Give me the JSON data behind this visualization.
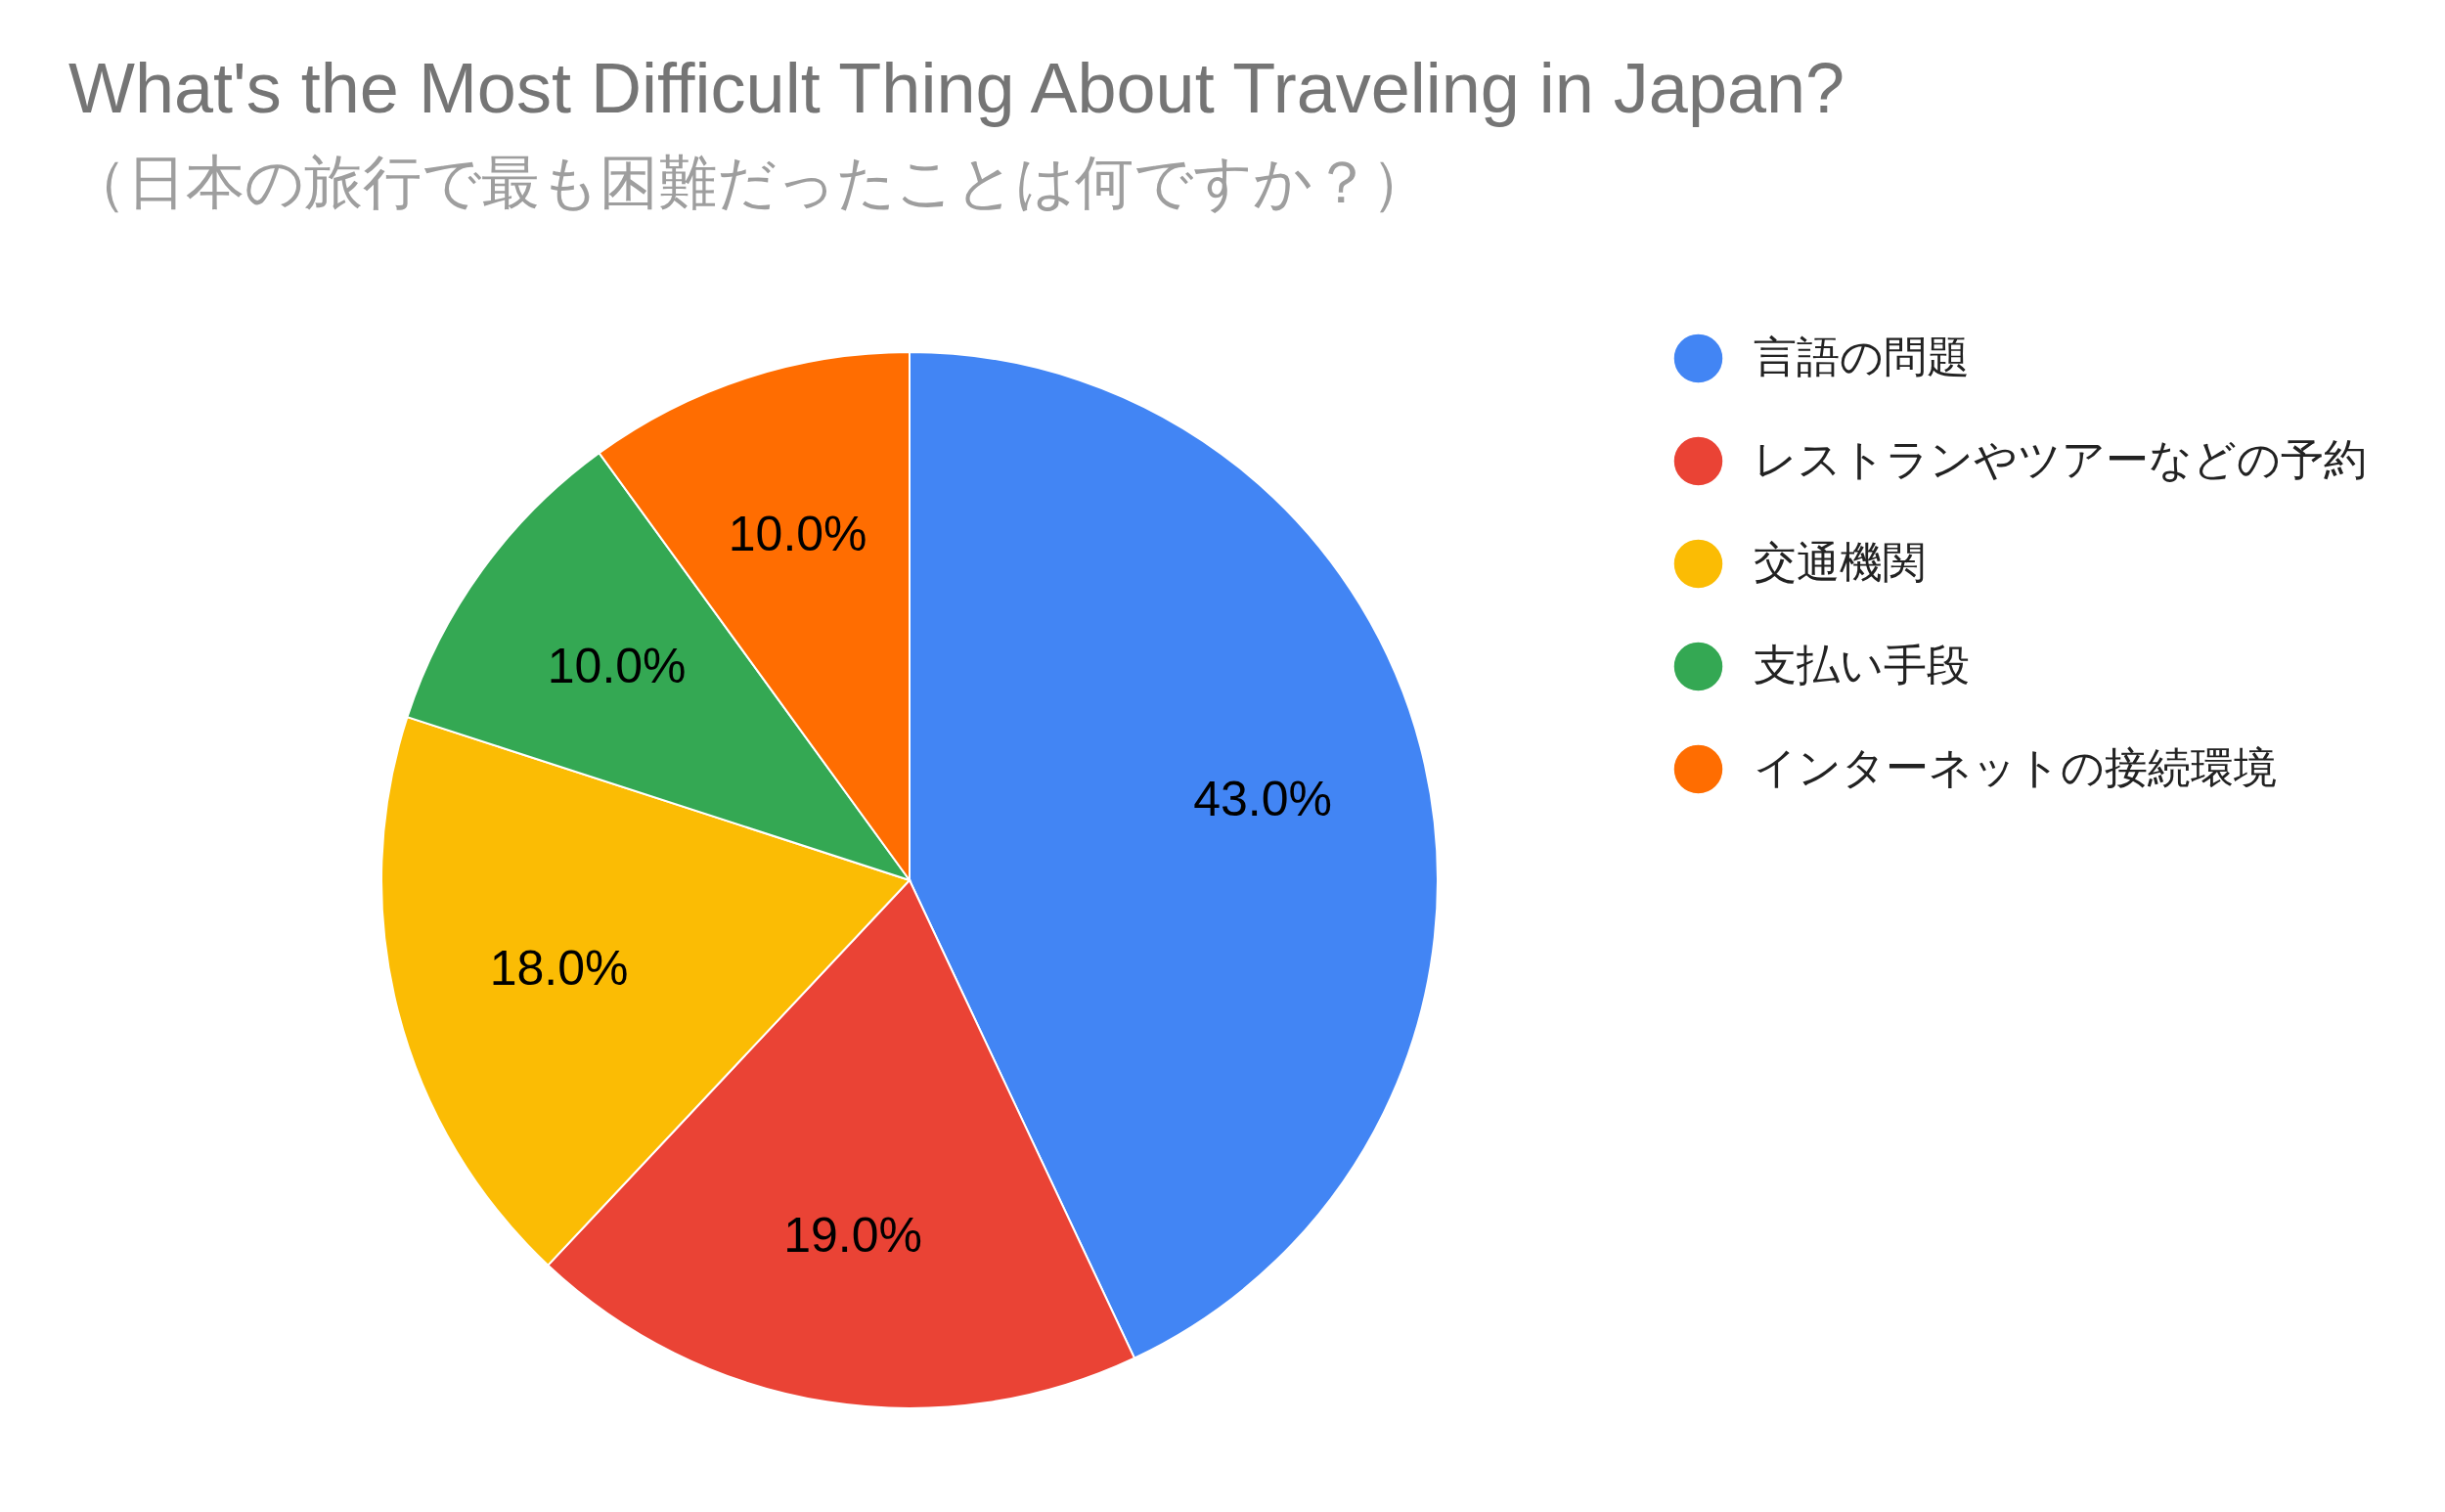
{
  "chart_data": {
    "type": "pie",
    "title": "What's the Most Difficult Thing About Traveling in Japan?",
    "subtitle": "（日本の旅行で最も困難だったことは何ですか？）",
    "categories": [
      "言語の問題",
      "レストランやツアーなどの予約",
      "交通機関",
      "支払い手段",
      "インターネットの接続環境"
    ],
    "values": [
      43,
      19,
      18,
      10,
      10
    ],
    "value_labels": [
      "43.0%",
      "19.0%",
      "18.0%",
      "10.0%",
      "10.0%"
    ],
    "colors": [
      "#4285f4",
      "#ea4335",
      "#fbbc04",
      "#34a853",
      "#ff6d01"
    ],
    "legend": "right"
  }
}
